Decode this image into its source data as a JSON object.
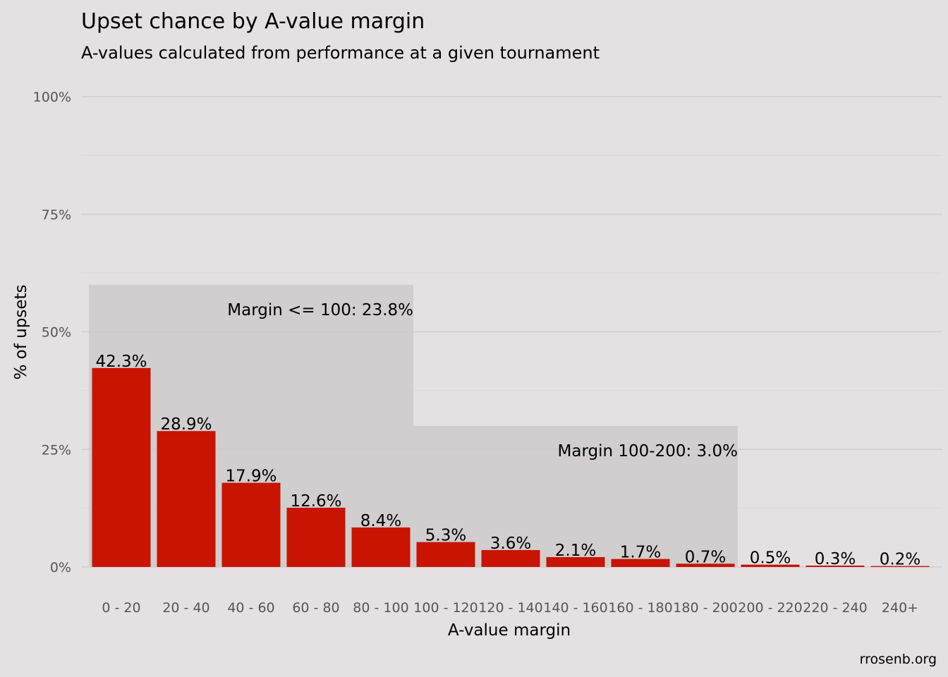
{
  "chart_data": {
    "type": "bar",
    "title": "Upset chance by A-value margin",
    "subtitle": "A-values calculated from performance at a given tournament",
    "xlabel": "A-value margin",
    "ylabel": "% of upsets",
    "ylim": [
      0,
      100
    ],
    "y_ticks": [
      "0%",
      "25%",
      "50%",
      "75%",
      "100%"
    ],
    "grid": true,
    "categories": [
      "0 - 20",
      "20 - 40",
      "40 - 60",
      "60 - 80",
      "80 - 100",
      "100 - 120",
      "120 - 140",
      "140 - 160",
      "160 - 180",
      "180 - 200",
      "200 - 220",
      "220 - 240",
      "240+"
    ],
    "values": [
      42.3,
      28.9,
      17.9,
      12.6,
      8.4,
      5.3,
      3.6,
      2.1,
      1.7,
      0.7,
      0.5,
      0.3,
      0.2
    ],
    "data_labels": [
      "42.3%",
      "28.9%",
      "17.9%",
      "12.6%",
      "8.4%",
      "5.3%",
      "3.6%",
      "2.1%",
      "1.7%",
      "0.7%",
      "0.5%",
      "0.3%",
      "0.2%"
    ],
    "bar_color": "#c81400",
    "annotations": [
      {
        "label": "Margin <= 100: 23.8%",
        "from_category": 0,
        "to_category": 4,
        "y_top": 60
      },
      {
        "label": "Margin 100-200: 3.0%",
        "from_category": 5,
        "to_category": 9,
        "y_top": 30
      }
    ],
    "caption": "rrosenb.org"
  }
}
